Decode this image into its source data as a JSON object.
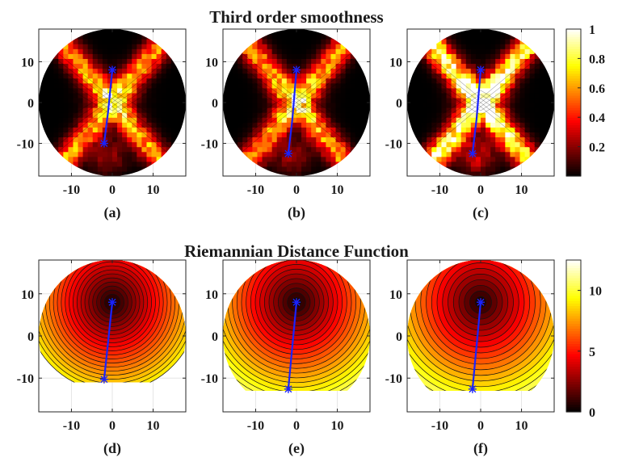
{
  "chart_data": [
    {
      "type": "heatmap",
      "title": "Third order smoothness",
      "colormap": "hot",
      "colorbar": {
        "min": 0,
        "max": 1,
        "tick_values": [
          0.2,
          0.4,
          0.6,
          0.8,
          1
        ],
        "tick_labels": [
          "0.2",
          "0.4",
          "0.6",
          "0.8",
          "1"
        ]
      },
      "panels": [
        {
          "label": "(a)",
          "xlim": [
            -18,
            18
          ],
          "ylim": [
            -18,
            18
          ],
          "path": [
            [
              -2,
              -10
            ],
            [
              -1,
              -2
            ],
            [
              0,
              8
            ]
          ],
          "peak_gain": 0.7
        },
        {
          "label": "(b)",
          "xlim": [
            -18,
            18
          ],
          "ylim": [
            -18,
            18
          ],
          "path": [
            [
              -2,
              -12.5
            ],
            [
              -1,
              -4
            ],
            [
              0,
              8
            ]
          ],
          "peak_gain": 0.72
        },
        {
          "label": "(c)",
          "xlim": [
            -18,
            18
          ],
          "ylim": [
            -18,
            18
          ],
          "path": [
            [
              -2,
              -12.5
            ],
            [
              -1,
              -4
            ],
            [
              0,
              8
            ]
          ],
          "peak_gain": 1.0
        }
      ],
      "xticks": [
        -10,
        0,
        10
      ],
      "xtick_labels": [
        "-10",
        "0",
        "10"
      ],
      "yticks": [
        -10,
        0,
        10
      ],
      "ytick_labels": [
        "-10",
        "0",
        "10"
      ]
    },
    {
      "type": "heatmap",
      "title": "Riemannian Distance Function",
      "colormap": "hot",
      "colorbar": {
        "min": 0,
        "max": 12.5,
        "tick_values": [
          0,
          5,
          10
        ],
        "tick_labels": [
          "0",
          "5",
          "10"
        ]
      },
      "source": [
        0,
        8
      ],
      "panels": [
        {
          "label": "(d)",
          "xlim": [
            -18,
            18
          ],
          "ylim": [
            -18,
            18
          ],
          "path": [
            [
              -2,
              -10.3
            ],
            [
              0,
              8
            ]
          ],
          "domain_bottom": -11,
          "max_value": 9
        },
        {
          "label": "(e)",
          "xlim": [
            -18,
            18
          ],
          "ylim": [
            -18,
            18
          ],
          "path": [
            [
              -2,
              -12.6
            ],
            [
              0,
              8
            ]
          ],
          "domain_bottom": -13,
          "max_value": 10.5
        },
        {
          "label": "(f)",
          "xlim": [
            -18,
            18
          ],
          "ylim": [
            -18,
            18
          ],
          "path": [
            [
              -2,
              -12.6
            ],
            [
              0,
              8
            ]
          ],
          "domain_bottom": -13,
          "max_value": 12.5
        }
      ],
      "xticks": [
        -10,
        0,
        10
      ],
      "xtick_labels": [
        "-10",
        "0",
        "10"
      ],
      "yticks": [
        -10,
        0,
        10
      ],
      "ytick_labels": [
        "-10",
        "0",
        "10"
      ]
    }
  ]
}
